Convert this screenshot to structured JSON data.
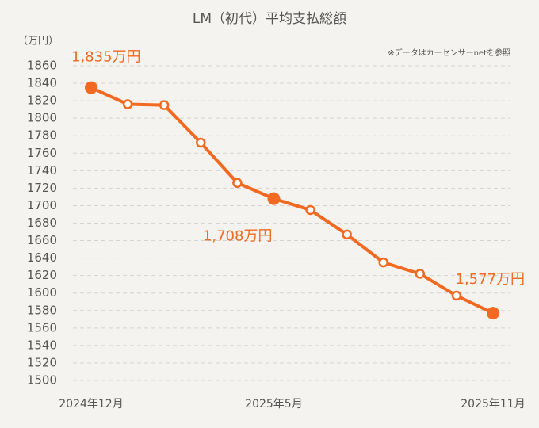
{
  "chart_data": {
    "type": "line",
    "title": "LM（初代）平均支払総額",
    "y_unit_label": "（万円）",
    "note": "※データはカーセンサーnetを参照",
    "categories": [
      "2024年12月",
      null,
      null,
      null,
      null,
      "2025年5月",
      null,
      null,
      null,
      null,
      null,
      "2025年11月"
    ],
    "series": [
      {
        "name": "平均支払総額",
        "color": "#f26a21",
        "values": [
          1835,
          1816,
          1815,
          1772,
          1726,
          1708,
          1695,
          1667,
          1635,
          1622,
          1597,
          1577
        ],
        "value_labels": [
          "1,835万円",
          null,
          null,
          null,
          null,
          "1,708万円",
          null,
          null,
          null,
          null,
          null,
          "1,577万円"
        ]
      }
    ],
    "ylim": [
      1500,
      1860
    ],
    "yticks": [
      1500,
      1520,
      1540,
      1560,
      1580,
      1600,
      1620,
      1640,
      1660,
      1680,
      1700,
      1720,
      1740,
      1760,
      1780,
      1800,
      1820,
      1840,
      1860
    ],
    "grid": true
  }
}
